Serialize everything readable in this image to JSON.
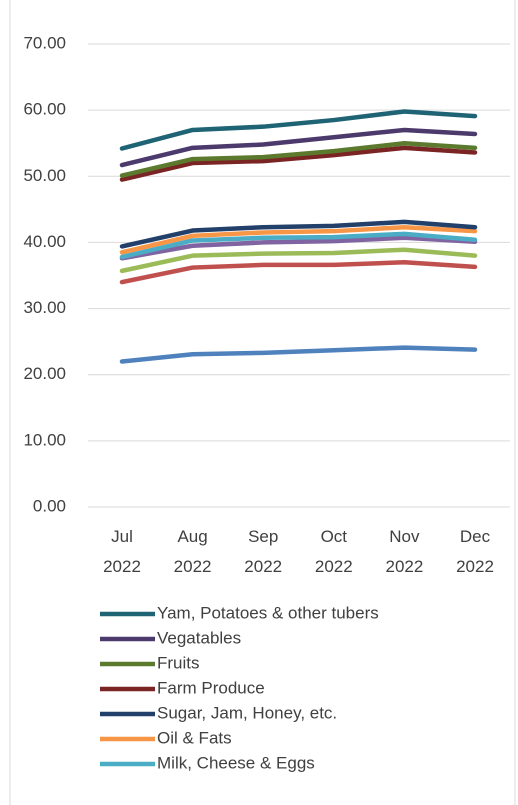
{
  "chart_data": {
    "type": "line",
    "categories": [
      "Jul 2022",
      "Aug 2022",
      "Sep 2022",
      "Oct 2022",
      "Nov 2022",
      "Dec 2022"
    ],
    "ylim": [
      0,
      70
    ],
    "yticks": [
      {
        "value": 0,
        "label": "0.00"
      },
      {
        "value": 10,
        "label": "10.00"
      },
      {
        "value": 20,
        "label": "20.00"
      },
      {
        "value": 30,
        "label": "30.00"
      },
      {
        "value": 40,
        "label": "40.00"
      },
      {
        "value": 50,
        "label": "50.00"
      },
      {
        "value": 60,
        "label": "60.00"
      },
      {
        "value": 70,
        "label": "70.00"
      }
    ],
    "grid": true,
    "series": [
      {
        "name": "Yam, Potatoes & other tubers",
        "color": "#1f6474",
        "values": [
          54.2,
          57.0,
          57.5,
          58.5,
          59.8,
          59.1
        ]
      },
      {
        "name": "Vegatables",
        "color": "#4b3a6b",
        "values": [
          51.7,
          54.3,
          54.8,
          55.9,
          57.0,
          56.4
        ]
      },
      {
        "name": "Fruits",
        "color": "#5b7a2e",
        "values": [
          50.1,
          52.6,
          52.9,
          53.8,
          55.0,
          54.3
        ]
      },
      {
        "name": "Farm Produce",
        "color": "#7b2424",
        "values": [
          49.5,
          52.0,
          52.3,
          53.2,
          54.3,
          53.6
        ]
      },
      {
        "name": "Sugar, Jam, Honey, etc.",
        "color": "#23406a",
        "values": [
          39.4,
          41.8,
          42.3,
          42.5,
          43.1,
          42.3
        ]
      },
      {
        "name": "Oil & Fats",
        "color": "#f79646",
        "values": [
          38.5,
          41.0,
          41.5,
          41.7,
          42.3,
          41.7
        ]
      },
      {
        "name": "Milk, Cheese & Eggs",
        "color": "#4bacc6",
        "values": [
          37.8,
          40.3,
          40.7,
          40.8,
          41.3,
          40.4
        ]
      },
      {
        "color": "#8064a2",
        "values": [
          37.6,
          39.5,
          40.0,
          40.2,
          40.7,
          40.1
        ]
      },
      {
        "color": "#9bbb59",
        "values": [
          35.7,
          38.0,
          38.3,
          38.4,
          38.9,
          38.0
        ]
      },
      {
        "color": "#c0504d",
        "values": [
          34.0,
          36.2,
          36.6,
          36.6,
          37.0,
          36.3
        ]
      },
      {
        "color": "#4f81bd",
        "values": [
          22.0,
          23.1,
          23.3,
          23.7,
          24.1,
          23.8
        ]
      }
    ]
  }
}
